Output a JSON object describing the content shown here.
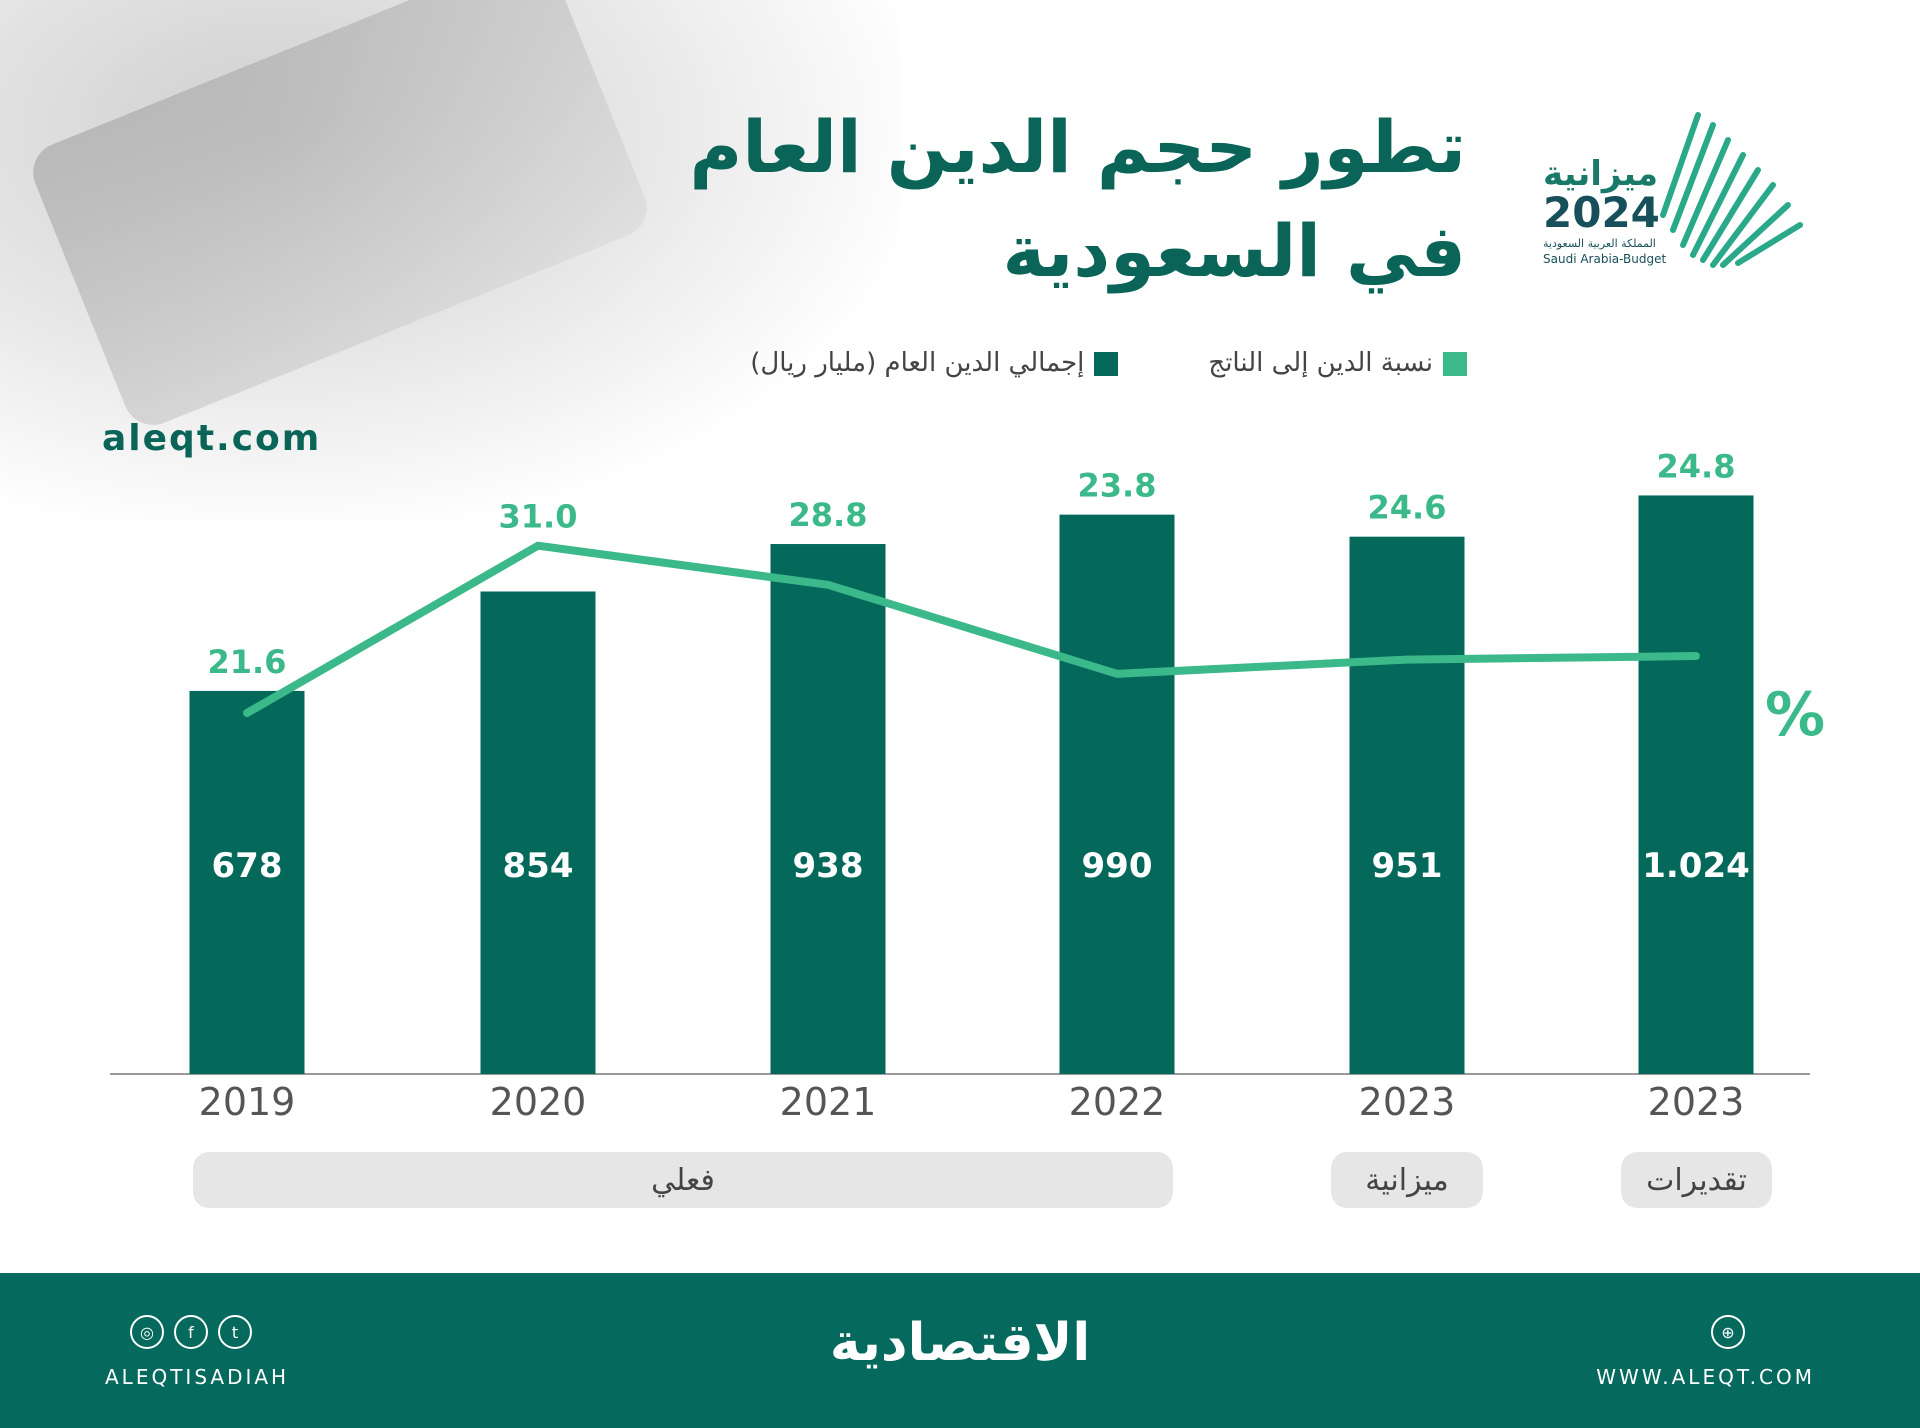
{
  "title": {
    "line1": "تطور حجم الدين العام",
    "line2": "في السعودية"
  },
  "logo": {
    "word": "ميزانية",
    "year": "2024",
    "ar": "المملكة العربية السعودية",
    "en": "Saudi Arabia-Budget"
  },
  "site": "aleqt.com",
  "colors": {
    "bar": "#04685b",
    "line": "#3bb98a",
    "footer": "#05695d"
  },
  "chart_data": {
    "type": "bar+line",
    "categories": [
      "2019",
      "2020",
      "2021",
      "2022",
      "2023",
      "2023"
    ],
    "series": [
      {
        "name": "إجمالي الدين العام (مليار ريال)",
        "type": "bar",
        "values": [
          678,
          854,
          938,
          990,
          951,
          1024
        ],
        "labels": [
          "678",
          "854",
          "938",
          "990",
          "951",
          "1.024"
        ]
      },
      {
        "name": "نسبة الدين إلى الناتج",
        "type": "line",
        "values": [
          21.6,
          31.0,
          28.8,
          23.8,
          24.6,
          24.8
        ],
        "labels": [
          "21.6",
          "31.0",
          "28.8",
          "23.8",
          "24.6",
          "24.8"
        ],
        "unit": "%"
      }
    ],
    "groups": [
      {
        "label": "فعلي",
        "span": [
          0,
          3
        ]
      },
      {
        "label": "ميزانية",
        "span": [
          4,
          4
        ]
      },
      {
        "label": "تقديرات",
        "span": [
          5,
          5
        ]
      }
    ],
    "legend": "top-right"
  },
  "footer": {
    "handle": "ALEQTISADIAH",
    "brand": "الاقتصادية",
    "website": "WWW.ALEQT.COM",
    "social": [
      "instagram-icon",
      "facebook-icon",
      "twitter-icon"
    ]
  }
}
